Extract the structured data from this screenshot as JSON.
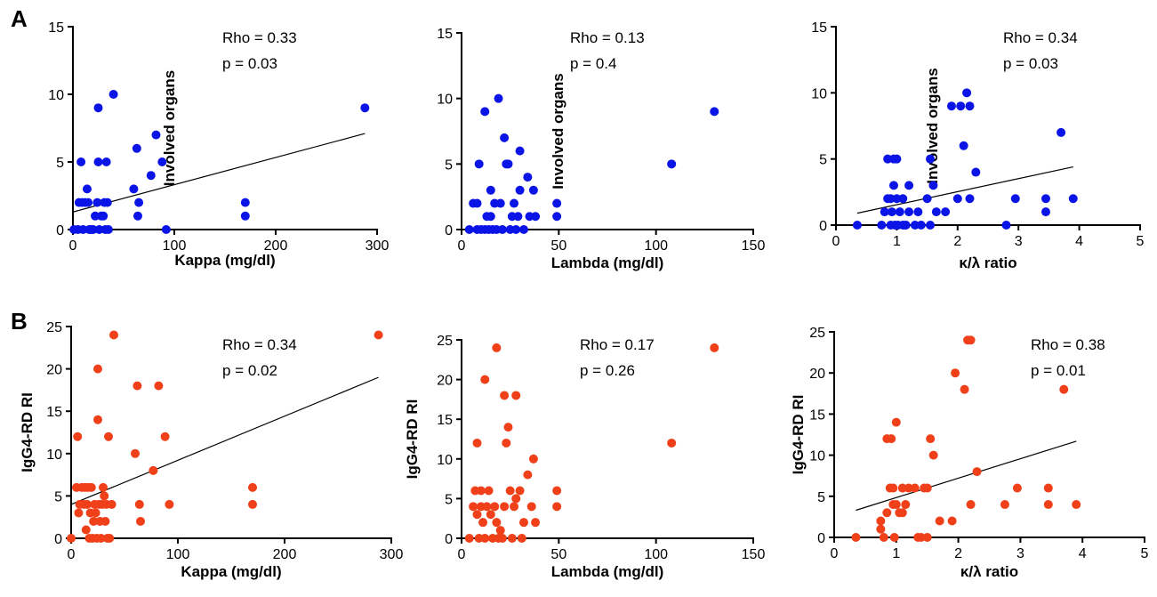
{
  "panel_labels": [
    "A",
    "B"
  ],
  "colors": {
    "row_A": "#0a14e6",
    "row_B": "#f0401a",
    "axis": "#000000",
    "fit": "#000000"
  },
  "chart_data": [
    {
      "type": "scatter",
      "title": "",
      "xlabel": "Kappa (mg/dl)",
      "ylabel": "Involved organs",
      "xlim": [
        0,
        300
      ],
      "ylim": [
        0,
        15
      ],
      "xticks": [
        0,
        100,
        200,
        300
      ],
      "yticks": [
        0,
        5,
        10,
        15
      ],
      "annotations": [
        "Rho = 0.33",
        "p = 0.03"
      ],
      "fit_line": {
        "x": [
          0,
          288
        ],
        "y": [
          1.3,
          7.1
        ]
      },
      "points": [
        [
          1,
          0
        ],
        [
          5,
          0
        ],
        [
          6,
          2
        ],
        [
          8,
          5
        ],
        [
          9,
          2
        ],
        [
          10,
          0
        ],
        [
          12,
          2
        ],
        [
          14,
          3
        ],
        [
          15,
          2
        ],
        [
          16,
          0
        ],
        [
          18,
          0
        ],
        [
          20,
          0
        ],
        [
          22,
          1
        ],
        [
          24,
          2
        ],
        [
          25,
          5
        ],
        [
          25,
          9
        ],
        [
          26,
          0
        ],
        [
          28,
          1
        ],
        [
          30,
          1
        ],
        [
          31,
          2
        ],
        [
          32,
          0
        ],
        [
          33,
          5
        ],
        [
          34,
          2
        ],
        [
          35,
          0
        ],
        [
          40,
          10
        ],
        [
          60,
          3
        ],
        [
          63,
          6
        ],
        [
          64,
          1
        ],
        [
          65,
          2
        ],
        [
          77,
          4
        ],
        [
          82,
          7
        ],
        [
          88,
          5
        ],
        [
          92,
          0
        ],
        [
          170,
          2
        ],
        [
          170,
          1
        ],
        [
          288,
          9
        ]
      ]
    },
    {
      "type": "scatter",
      "title": "",
      "xlabel": "Lambda (mg/dl)",
      "ylabel": "Involved organs",
      "xlim": [
        0,
        150
      ],
      "ylim": [
        0,
        15
      ],
      "xticks": [
        0,
        50,
        100,
        150
      ],
      "yticks": [
        0,
        5,
        10,
        15
      ],
      "annotations": [
        "Rho = 0.13",
        "p = 0.4"
      ],
      "fit_line": null,
      "points": [
        [
          4,
          0
        ],
        [
          6,
          2
        ],
        [
          8,
          0
        ],
        [
          8,
          2
        ],
        [
          9,
          5
        ],
        [
          10,
          0
        ],
        [
          12,
          0
        ],
        [
          12,
          9
        ],
        [
          13,
          1
        ],
        [
          14,
          0
        ],
        [
          15,
          3
        ],
        [
          15,
          1
        ],
        [
          16,
          0
        ],
        [
          17,
          2
        ],
        [
          18,
          0
        ],
        [
          19,
          10
        ],
        [
          20,
          2
        ],
        [
          21,
          0
        ],
        [
          22,
          7
        ],
        [
          23,
          5
        ],
        [
          24,
          5
        ],
        [
          25,
          0
        ],
        [
          26,
          1
        ],
        [
          27,
          2
        ],
        [
          28,
          0
        ],
        [
          29,
          1
        ],
        [
          30,
          6
        ],
        [
          30,
          3
        ],
        [
          32,
          0
        ],
        [
          34,
          4
        ],
        [
          35,
          1
        ],
        [
          37,
          3
        ],
        [
          38,
          1
        ],
        [
          49,
          2
        ],
        [
          49,
          1
        ],
        [
          108,
          5
        ],
        [
          130,
          9
        ]
      ]
    },
    {
      "type": "scatter",
      "title": "",
      "xlabel": "κ/λ ratio",
      "ylabel": "Involved organs",
      "xlim": [
        0,
        5
      ],
      "ylim": [
        0,
        15
      ],
      "xticks": [
        0,
        1,
        2,
        3,
        4,
        5
      ],
      "yticks": [
        0,
        5,
        10,
        15
      ],
      "annotations": [
        "Rho = 0.34",
        "p = 0.03"
      ],
      "fit_line": {
        "x": [
          0.35,
          3.9
        ],
        "y": [
          0.9,
          4.4
        ]
      },
      "points": [
        [
          0.35,
          0
        ],
        [
          0.75,
          0
        ],
        [
          0.8,
          1
        ],
        [
          0.85,
          2
        ],
        [
          0.85,
          5
        ],
        [
          0.9,
          0
        ],
        [
          0.9,
          2
        ],
        [
          0.92,
          1
        ],
        [
          0.95,
          5
        ],
        [
          0.95,
          3
        ],
        [
          0.97,
          0
        ],
        [
          1.0,
          2
        ],
        [
          1.0,
          5
        ],
        [
          1.02,
          0
        ],
        [
          1.05,
          1
        ],
        [
          1.1,
          2
        ],
        [
          1.1,
          0
        ],
        [
          1.15,
          0
        ],
        [
          1.2,
          3
        ],
        [
          1.2,
          1
        ],
        [
          1.3,
          0
        ],
        [
          1.35,
          1
        ],
        [
          1.4,
          0
        ],
        [
          1.5,
          2
        ],
        [
          1.55,
          5
        ],
        [
          1.55,
          0
        ],
        [
          1.6,
          3
        ],
        [
          1.65,
          1
        ],
        [
          1.8,
          1
        ],
        [
          1.9,
          9
        ],
        [
          2.0,
          2
        ],
        [
          2.05,
          9
        ],
        [
          2.1,
          6
        ],
        [
          2.15,
          10
        ],
        [
          2.2,
          9
        ],
        [
          2.2,
          2
        ],
        [
          2.3,
          4
        ],
        [
          2.8,
          0
        ],
        [
          2.95,
          2
        ],
        [
          3.45,
          2
        ],
        [
          3.45,
          1
        ],
        [
          3.7,
          7
        ],
        [
          3.9,
          2
        ]
      ]
    },
    {
      "type": "scatter",
      "title": "",
      "xlabel": "Kappa (mg/dl)",
      "ylabel": "IgG4-RD RI",
      "xlim": [
        0,
        300
      ],
      "ylim": [
        0,
        25
      ],
      "xticks": [
        0,
        100,
        200,
        300
      ],
      "yticks": [
        0,
        5,
        10,
        15,
        20,
        25
      ],
      "annotations": [
        "Rho = 0.34",
        "p = 0.02"
      ],
      "fit_line": {
        "x": [
          0,
          288
        ],
        "y": [
          4,
          19
        ]
      },
      "points": [
        [
          0,
          0
        ],
        [
          5,
          6
        ],
        [
          6,
          12
        ],
        [
          7,
          3
        ],
        [
          8,
          4
        ],
        [
          10,
          6
        ],
        [
          12,
          4
        ],
        [
          13,
          6
        ],
        [
          14,
          1
        ],
        [
          15,
          4
        ],
        [
          16,
          6
        ],
        [
          17,
          0
        ],
        [
          18,
          3
        ],
        [
          19,
          6
        ],
        [
          20,
          0
        ],
        [
          21,
          2
        ],
        [
          22,
          4
        ],
        [
          23,
          3
        ],
        [
          24,
          0
        ],
        [
          25,
          14
        ],
        [
          25,
          20
        ],
        [
          26,
          4
        ],
        [
          27,
          2
        ],
        [
          28,
          0
        ],
        [
          29,
          4
        ],
        [
          30,
          6
        ],
        [
          31,
          5
        ],
        [
          32,
          2
        ],
        [
          33,
          4
        ],
        [
          34,
          0
        ],
        [
          35,
          12
        ],
        [
          36,
          0
        ],
        [
          38,
          4
        ],
        [
          40,
          24
        ],
        [
          60,
          10
        ],
        [
          62,
          18
        ],
        [
          64,
          4
        ],
        [
          65,
          2
        ],
        [
          77,
          8
        ],
        [
          82,
          18
        ],
        [
          88,
          12
        ],
        [
          92,
          4
        ],
        [
          170,
          6
        ],
        [
          170,
          4
        ],
        [
          288,
          24
        ]
      ]
    },
    {
      "type": "scatter",
      "title": "",
      "xlabel": "Lambda (mg/dl)",
      "ylabel": "IgG4-RD RI",
      "xlim": [
        0,
        150
      ],
      "ylim": [
        0,
        25
      ],
      "xticks": [
        0,
        50,
        100,
        150
      ],
      "yticks": [
        0,
        5,
        10,
        15,
        20,
        25
      ],
      "annotations": [
        "Rho = 0.17",
        "p = 0.26"
      ],
      "fit_line": null,
      "points": [
        [
          4,
          0
        ],
        [
          6,
          4
        ],
        [
          7,
          6
        ],
        [
          8,
          12
        ],
        [
          8,
          3
        ],
        [
          9,
          0
        ],
        [
          10,
          4
        ],
        [
          10,
          6
        ],
        [
          11,
          2
        ],
        [
          12,
          0
        ],
        [
          12,
          20
        ],
        [
          13,
          4
        ],
        [
          14,
          6
        ],
        [
          15,
          3
        ],
        [
          16,
          0
        ],
        [
          17,
          4
        ],
        [
          18,
          2
        ],
        [
          18,
          24
        ],
        [
          19,
          0
        ],
        [
          20,
          1
        ],
        [
          21,
          0
        ],
        [
          22,
          4
        ],
        [
          22,
          18
        ],
        [
          23,
          12
        ],
        [
          24,
          14
        ],
        [
          25,
          6
        ],
        [
          26,
          0
        ],
        [
          27,
          4
        ],
        [
          28,
          18
        ],
        [
          28,
          5
        ],
        [
          30,
          6
        ],
        [
          31,
          0
        ],
        [
          32,
          2
        ],
        [
          34,
          8
        ],
        [
          36,
          4
        ],
        [
          37,
          10
        ],
        [
          38,
          2
        ],
        [
          49,
          6
        ],
        [
          49,
          4
        ],
        [
          108,
          12
        ],
        [
          130,
          24
        ]
      ]
    },
    {
      "type": "scatter",
      "title": "",
      "xlabel": "κ/λ ratio",
      "ylabel": "IgG4-RD RI",
      "xlim": [
        0,
        5
      ],
      "ylim": [
        0,
        25
      ],
      "xticks": [
        0,
        1,
        2,
        3,
        4,
        5
      ],
      "yticks": [
        0,
        5,
        10,
        15,
        20,
        25
      ],
      "annotations": [
        "Rho = 0.38",
        "p = 0.01"
      ],
      "fit_line": {
        "x": [
          0.35,
          3.9
        ],
        "y": [
          3.3,
          11.7
        ]
      },
      "points": [
        [
          0.35,
          0
        ],
        [
          0.75,
          2
        ],
        [
          0.75,
          1
        ],
        [
          0.8,
          0
        ],
        [
          0.85,
          3
        ],
        [
          0.85,
          12
        ],
        [
          0.9,
          6
        ],
        [
          0.92,
          12
        ],
        [
          0.95,
          4
        ],
        [
          0.95,
          6
        ],
        [
          0.97,
          0
        ],
        [
          1.0,
          14
        ],
        [
          1.0,
          4
        ],
        [
          1.05,
          3
        ],
        [
          1.1,
          6
        ],
        [
          1.1,
          3
        ],
        [
          1.15,
          4
        ],
        [
          1.2,
          6
        ],
        [
          1.3,
          6
        ],
        [
          1.35,
          0
        ],
        [
          1.4,
          0
        ],
        [
          1.45,
          6
        ],
        [
          1.5,
          6
        ],
        [
          1.5,
          0
        ],
        [
          1.55,
          12
        ],
        [
          1.6,
          10
        ],
        [
          1.7,
          2
        ],
        [
          1.9,
          2
        ],
        [
          1.95,
          20
        ],
        [
          2.1,
          18
        ],
        [
          2.15,
          24
        ],
        [
          2.2,
          4
        ],
        [
          2.2,
          24
        ],
        [
          2.3,
          8
        ],
        [
          2.75,
          4
        ],
        [
          2.95,
          6
        ],
        [
          3.45,
          6
        ],
        [
          3.45,
          4
        ],
        [
          3.7,
          18
        ],
        [
          3.9,
          4
        ]
      ]
    }
  ]
}
